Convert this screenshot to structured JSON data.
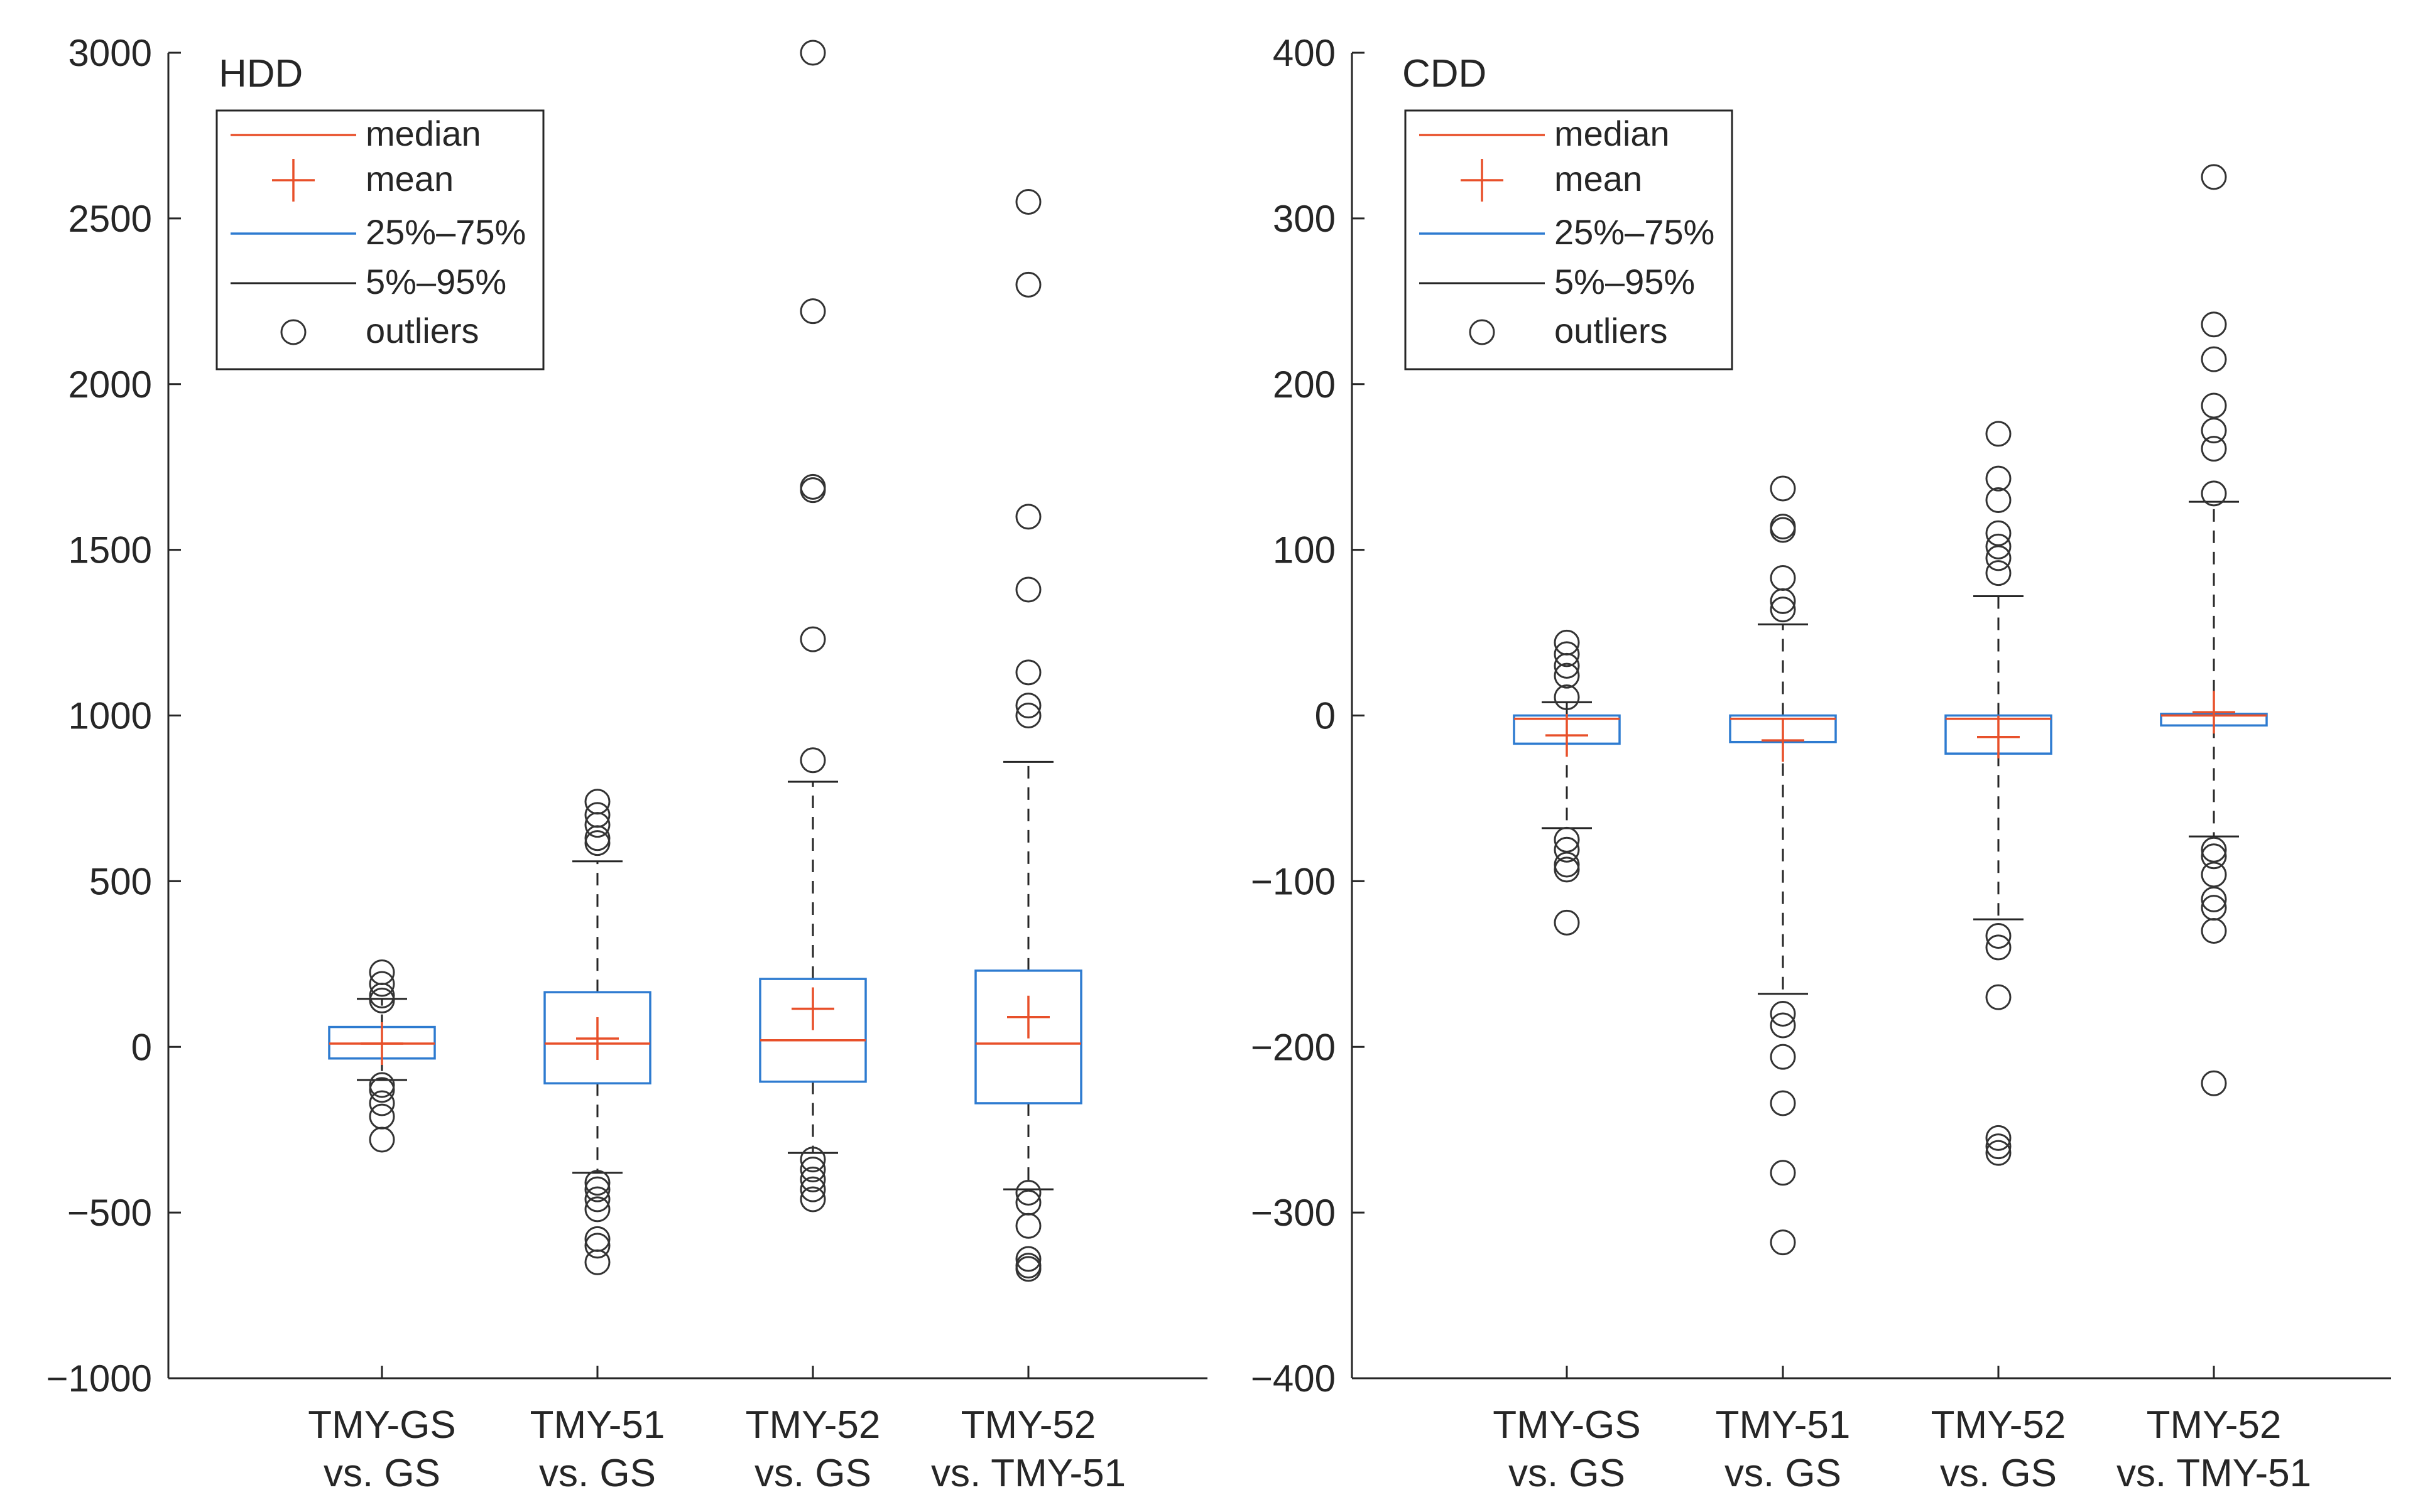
{
  "colors": {
    "median": "#E8502A",
    "mean": "#E8502A",
    "box": "#2E7BD0",
    "whisker": "#262626",
    "outlier": "#333333",
    "axis": "#262626"
  },
  "legend": {
    "median": "median",
    "mean": "mean",
    "iqr": "25%–75%",
    "range": "5%–95%",
    "outliers": "outliers"
  },
  "chart_data": [
    {
      "type": "box",
      "title": "HDD",
      "ylim": [
        -1000,
        3000
      ],
      "yticks": [
        -1000,
        -500,
        0,
        500,
        1000,
        1500,
        2000,
        2500,
        3000
      ],
      "ytick_labels": [
        "−1000",
        "−500",
        "0",
        "500",
        "1000",
        "1500",
        "2000",
        "2500",
        "3000"
      ],
      "categories": [
        {
          "line1": "TMY-GS",
          "line2": "vs. GS"
        },
        {
          "line1": "TMY-51",
          "line2": "vs. GS"
        },
        {
          "line1": "TMY-52",
          "line2": "vs. GS"
        },
        {
          "line1": "TMY-52",
          "line2": "vs. TMY-51"
        }
      ],
      "boxes": [
        {
          "q1": -35,
          "median": 10,
          "q3": 60,
          "mean": 10,
          "p5": -100,
          "p95": 145,
          "outliers": [
            225,
            190,
            155,
            140,
            -115,
            -130,
            -170,
            -210,
            -280
          ]
        },
        {
          "q1": -110,
          "median": 10,
          "q3": 165,
          "mean": 25,
          "p5": -380,
          "p95": 560,
          "outliers": [
            740,
            700,
            670,
            630,
            615,
            -410,
            -430,
            -460,
            -490,
            -580,
            -600,
            -650
          ]
        },
        {
          "q1": -105,
          "median": 20,
          "q3": 205,
          "mean": 115,
          "p5": -320,
          "p95": 800,
          "outliers": [
            3000,
            2220,
            1690,
            1680,
            1230,
            865,
            -340,
            -370,
            -400,
            -430,
            -460
          ]
        },
        {
          "q1": -170,
          "median": 10,
          "q3": 230,
          "mean": 90,
          "p5": -430,
          "p95": 860,
          "outliers": [
            2550,
            2300,
            1600,
            1380,
            1130,
            1030,
            1000,
            -440,
            -470,
            -540,
            -640,
            -660,
            -670
          ]
        }
      ]
    },
    {
      "type": "box",
      "title": "CDD",
      "ylim": [
        -400,
        400
      ],
      "yticks": [
        -400,
        -300,
        -200,
        -100,
        0,
        100,
        200,
        300,
        400
      ],
      "ytick_labels": [
        "−400",
        "−300",
        "−200",
        "−100",
        "0",
        "100",
        "200",
        "300",
        "400"
      ],
      "categories": [
        {
          "line1": "TMY-GS",
          "line2": "vs. GS"
        },
        {
          "line1": "TMY-51",
          "line2": "vs. GS"
        },
        {
          "line1": "TMY-52",
          "line2": "vs. GS"
        },
        {
          "line1": "TMY-52",
          "line2": "vs. TMY-51"
        }
      ],
      "boxes": [
        {
          "q1": -17,
          "median": -2,
          "q3": 0,
          "mean": -12,
          "p5": -68,
          "p95": 8,
          "outliers": [
            44,
            37,
            30,
            24,
            11,
            -75,
            -81,
            -90,
            -93,
            -125
          ]
        },
        {
          "q1": -16,
          "median": -2,
          "q3": 0,
          "mean": -15,
          "p5": -168,
          "p95": 55,
          "outliers": [
            137,
            114,
            112,
            83,
            69,
            64,
            -180,
            -187,
            -206,
            -234,
            -276,
            -318
          ]
        },
        {
          "q1": -23,
          "median": -2,
          "q3": 0,
          "mean": -13,
          "p5": -123,
          "p95": 72,
          "outliers": [
            170,
            143,
            130,
            110,
            102,
            95,
            86,
            -133,
            -140,
            -170,
            -255,
            -260,
            -264
          ]
        },
        {
          "q1": -6,
          "median": 0,
          "q3": 1,
          "mean": 2,
          "p5": -73,
          "p95": 129,
          "outliers": [
            325,
            236,
            215,
            187,
            172,
            161,
            134,
            -81,
            -85,
            -96,
            -111,
            -116,
            -130,
            -222
          ]
        }
      ]
    }
  ]
}
